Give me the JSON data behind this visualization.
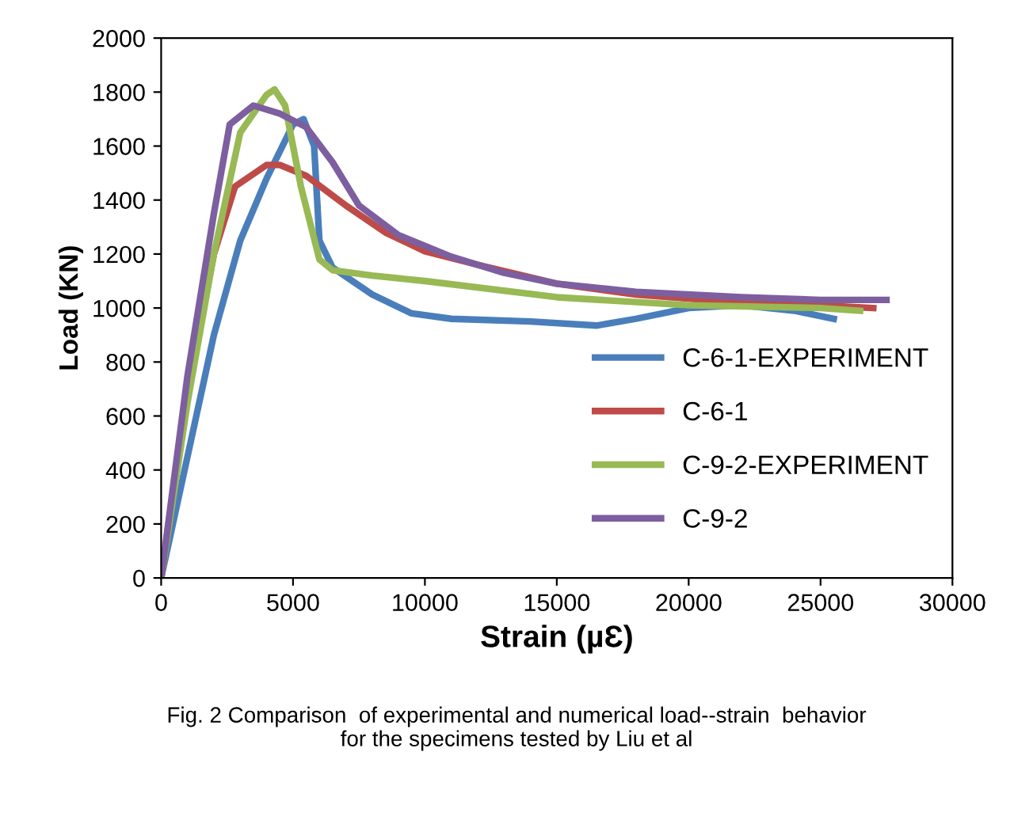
{
  "chart_data": {
    "type": "line",
    "xlabel": "Strain (µƐ)",
    "ylabel": "Load (KN)",
    "xlim": [
      0,
      30000
    ],
    "xticks": [
      0,
      5000,
      10000,
      15000,
      20000,
      25000,
      30000
    ],
    "ylim": [
      0,
      2000
    ],
    "yticks": [
      0,
      200,
      400,
      600,
      800,
      1000,
      1200,
      1400,
      1600,
      1800,
      2000
    ],
    "grid": false,
    "legend": "right",
    "marker": "none",
    "line_style": "solid",
    "annotations": [
      "Fig. 2 Comparison  of experimental and numerical load--strain  behavior\nfor the specimens tested by Liu et al"
    ],
    "series": [
      {
        "name": "C-6-1-EXPERIMENT",
        "color": "#4a7ebb",
        "x": [
          0,
          1000,
          2000,
          3000,
          4000,
          5000,
          5400,
          5800,
          6000,
          6500,
          8000,
          9500,
          11000,
          14000,
          16500,
          18000,
          20000,
          22000,
          24000,
          25500
        ],
        "values": [
          0,
          450,
          900,
          1250,
          1480,
          1680,
          1700,
          1600,
          1250,
          1150,
          1050,
          980,
          960,
          950,
          935,
          960,
          1000,
          1010,
          990,
          960
        ]
      },
      {
        "name": "C-6-1",
        "color": "#be4b48",
        "x": [
          0,
          1000,
          2000,
          2800,
          4000,
          4500,
          5500,
          7000,
          8500,
          10000,
          12000,
          15000,
          18000,
          22000,
          25000,
          27000
        ],
        "values": [
          0,
          700,
          1200,
          1450,
          1530,
          1530,
          1490,
          1380,
          1280,
          1210,
          1160,
          1090,
          1050,
          1020,
          1010,
          1000
        ]
      },
      {
        "name": "C-9-2-EXPERIMENT",
        "color": "#98b954",
        "x": [
          0,
          1000,
          2000,
          3000,
          4000,
          4300,
          4700,
          5300,
          6000,
          6500,
          8000,
          10000,
          15000,
          20000,
          25000,
          26500
        ],
        "values": [
          0,
          650,
          1200,
          1650,
          1790,
          1810,
          1750,
          1450,
          1180,
          1140,
          1120,
          1100,
          1040,
          1010,
          1000,
          990
        ]
      },
      {
        "name": "C-9-2",
        "color": "#7d5fa0",
        "x": [
          0,
          1000,
          2000,
          2600,
          3500,
          4500,
          5500,
          6500,
          7500,
          9000,
          11000,
          13000,
          15000,
          18000,
          22000,
          25000,
          27500
        ],
        "values": [
          0,
          750,
          1350,
          1680,
          1750,
          1720,
          1670,
          1540,
          1380,
          1270,
          1190,
          1130,
          1090,
          1060,
          1040,
          1030,
          1030
        ]
      }
    ]
  }
}
